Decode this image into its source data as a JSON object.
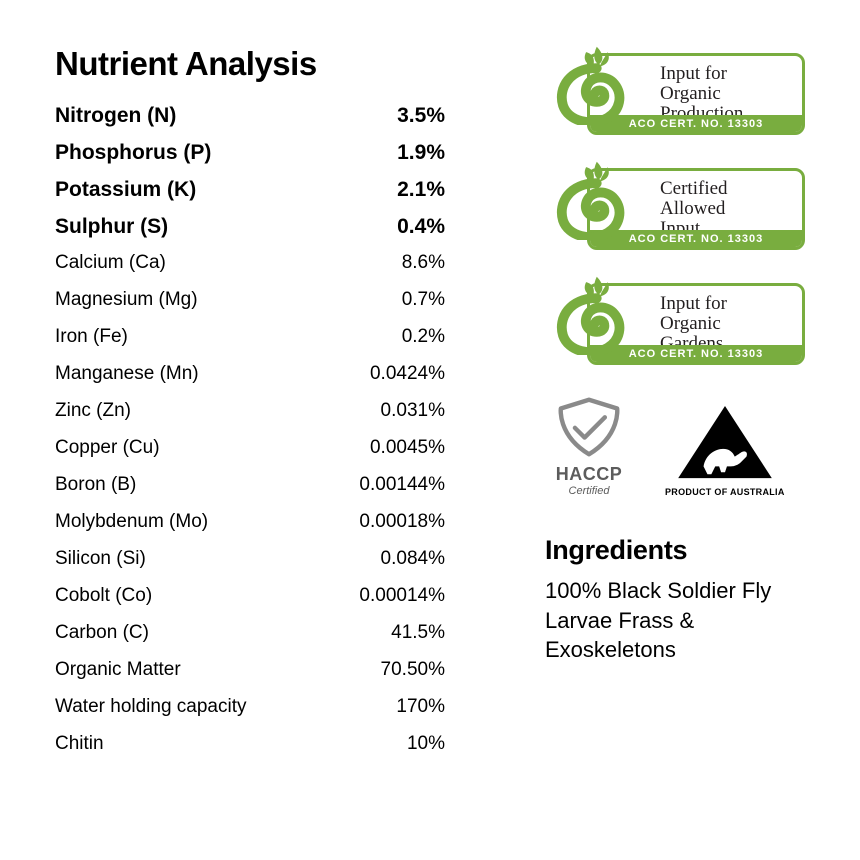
{
  "title": "Nutrient Analysis",
  "green": "#79ad3f",
  "nutrients_bold": [
    {
      "label": "Nitrogen (N)",
      "value": "3.5%"
    },
    {
      "label": "Phosphorus (P)",
      "value": "1.9%"
    },
    {
      "label": "Potassium (K)",
      "value": "2.1%"
    },
    {
      "label": "Sulphur (S)",
      "value": "0.4%"
    }
  ],
  "nutrients": [
    {
      "label": "Calcium (Ca)",
      "value": "8.6%"
    },
    {
      "label": "Magnesium (Mg)",
      "value": "0.7%"
    },
    {
      "label": "Iron (Fe)",
      "value": "0.2%"
    },
    {
      "label": "Manganese (Mn)",
      "value": "0.0424%"
    },
    {
      "label": "Zinc (Zn)",
      "value": "0.031%"
    },
    {
      "label": "Copper (Cu)",
      "value": "0.0045%"
    },
    {
      "label": "Boron (B)",
      "value": "0.00144%"
    },
    {
      "label": "Molybdenum (Mo)",
      "value": "0.00018%"
    },
    {
      "label": "Silicon (Si)",
      "value": "0.084%"
    },
    {
      "label": "Cobolt (Co)",
      "value": "0.00014%"
    },
    {
      "label": "Carbon (C)",
      "value": "41.5%"
    },
    {
      "label": "Organic Matter",
      "value": "70.50%"
    },
    {
      "label": "Water holding capacity",
      "value": "170%"
    },
    {
      "label": "Chitin",
      "value": "10%"
    }
  ],
  "badges": [
    {
      "line1": "Input for",
      "line2": "Organic",
      "line3": "Production",
      "cert": "ACO CERT. NO. 13303"
    },
    {
      "line1": "Certified",
      "line2": "Allowed",
      "line3": "Input",
      "cert": "ACO CERT. NO. 13303"
    },
    {
      "line1": "Input for",
      "line2": "Organic",
      "line3": "Gardens",
      "cert": "ACO CERT. NO. 13303"
    }
  ],
  "haccp": {
    "title": "HACCP",
    "sub": "Certified"
  },
  "aus": {
    "label": "PRODUCT OF AUSTRALIA"
  },
  "ingredients": {
    "title": "Ingredients",
    "body": "100% Black Soldier Fly Larvae Frass & Exoskeletons"
  }
}
